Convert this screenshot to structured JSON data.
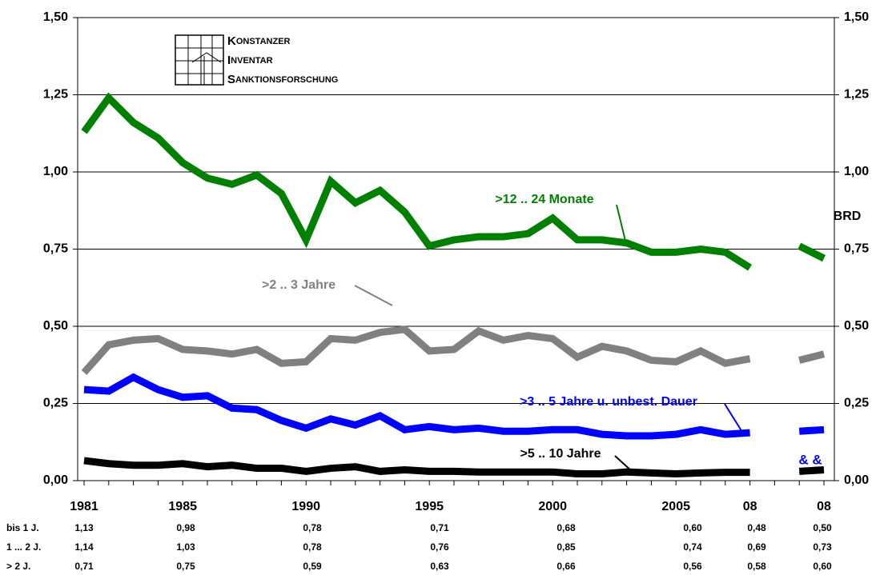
{
  "chart_data": {
    "type": "line",
    "categories": [
      "1981",
      null,
      null,
      null,
      "1985",
      null,
      null,
      null,
      null,
      "1990",
      null,
      null,
      null,
      null,
      "1995",
      null,
      null,
      null,
      null,
      "2000",
      null,
      null,
      null,
      null,
      "2005",
      null,
      null,
      "08",
      null,
      null,
      "08"
    ],
    "series": [
      {
        "name": ">12 .. 24 Monate",
        "color": "#008000",
        "values": [
          1.13,
          1.24,
          1.16,
          1.11,
          1.03,
          0.98,
          0.96,
          0.99,
          0.93,
          0.78,
          0.97,
          0.9,
          0.94,
          0.87,
          0.76,
          0.78,
          0.79,
          0.79,
          0.8,
          0.85,
          0.78,
          0.78,
          0.77,
          0.74,
          0.74,
          0.75,
          0.74,
          0.69,
          null,
          0.76,
          0.72
        ]
      },
      {
        "name": ">2 .. 3 Jahre",
        "color": "#808080",
        "values": [
          0.35,
          0.44,
          0.455,
          0.46,
          0.425,
          0.42,
          0.41,
          0.425,
          0.38,
          0.385,
          0.46,
          0.455,
          0.48,
          0.49,
          0.42,
          0.425,
          0.485,
          0.455,
          0.47,
          0.46,
          0.4,
          0.435,
          0.42,
          0.39,
          0.385,
          0.42,
          0.38,
          0.395,
          null,
          0.39,
          0.41
        ]
      },
      {
        "name": ">3 .. 5 Jahre u. unbest. Dauer",
        "color": "#0000ff",
        "values": [
          0.295,
          0.29,
          0.335,
          0.295,
          0.27,
          0.275,
          0.235,
          0.23,
          0.195,
          0.17,
          0.2,
          0.18,
          0.21,
          0.165,
          0.175,
          0.165,
          0.17,
          0.16,
          0.16,
          0.165,
          0.165,
          0.15,
          0.145,
          0.145,
          0.15,
          0.165,
          0.15,
          0.155,
          null,
          0.16,
          0.165
        ]
      },
      {
        "name": ">5 .. 10 Jahre",
        "color": "#000000",
        "values": [
          0.065,
          0.055,
          0.05,
          0.05,
          0.055,
          0.045,
          0.05,
          0.04,
          0.04,
          0.03,
          0.04,
          0.045,
          0.03,
          0.035,
          0.03,
          0.03,
          0.028,
          0.028,
          0.028,
          0.028,
          0.022,
          0.022,
          0.028,
          0.025,
          0.022,
          0.025,
          0.027,
          0.027,
          null,
          0.03,
          0.035
        ]
      }
    ],
    "ylim": [
      0,
      1.5
    ],
    "yticks": [
      {
        "value": 0,
        "label": "0,00"
      },
      {
        "value": 0.25,
        "label": "0,25"
      },
      {
        "value": 0.5,
        "label": "0,50"
      },
      {
        "value": 0.75,
        "label": "0,75"
      },
      {
        "value": 1,
        "label": "1,00"
      },
      {
        "value": 1.25,
        "label": "1,25"
      },
      {
        "value": 1.5,
        "label": "1,50"
      }
    ],
    "grid": true,
    "annotations": {
      "brd": "BRD",
      "amp": "& &"
    },
    "logo": [
      "K",
      "ONSTANZER",
      "I",
      "NVENTAR",
      "S",
      "ANKTIONSFORSCHUNG"
    ]
  },
  "table": {
    "rows": [
      {
        "label": "bis 1 J.",
        "values": [
          "1,13",
          "0,98",
          "0,78",
          "0,71",
          "0,68",
          "0,60",
          "0,48",
          "0,50"
        ]
      },
      {
        "label": "1 ... 2 J.",
        "values": [
          "1,14",
          "1,03",
          "0,78",
          "0,76",
          "0,85",
          "0,74",
          "0,69",
          "0,73"
        ]
      },
      {
        "label": "> 2 J.",
        "values": [
          "0,71",
          "0,75",
          "0,59",
          "0,63",
          "0,66",
          "0,56",
          "0,58",
          "0,60"
        ]
      }
    ]
  }
}
